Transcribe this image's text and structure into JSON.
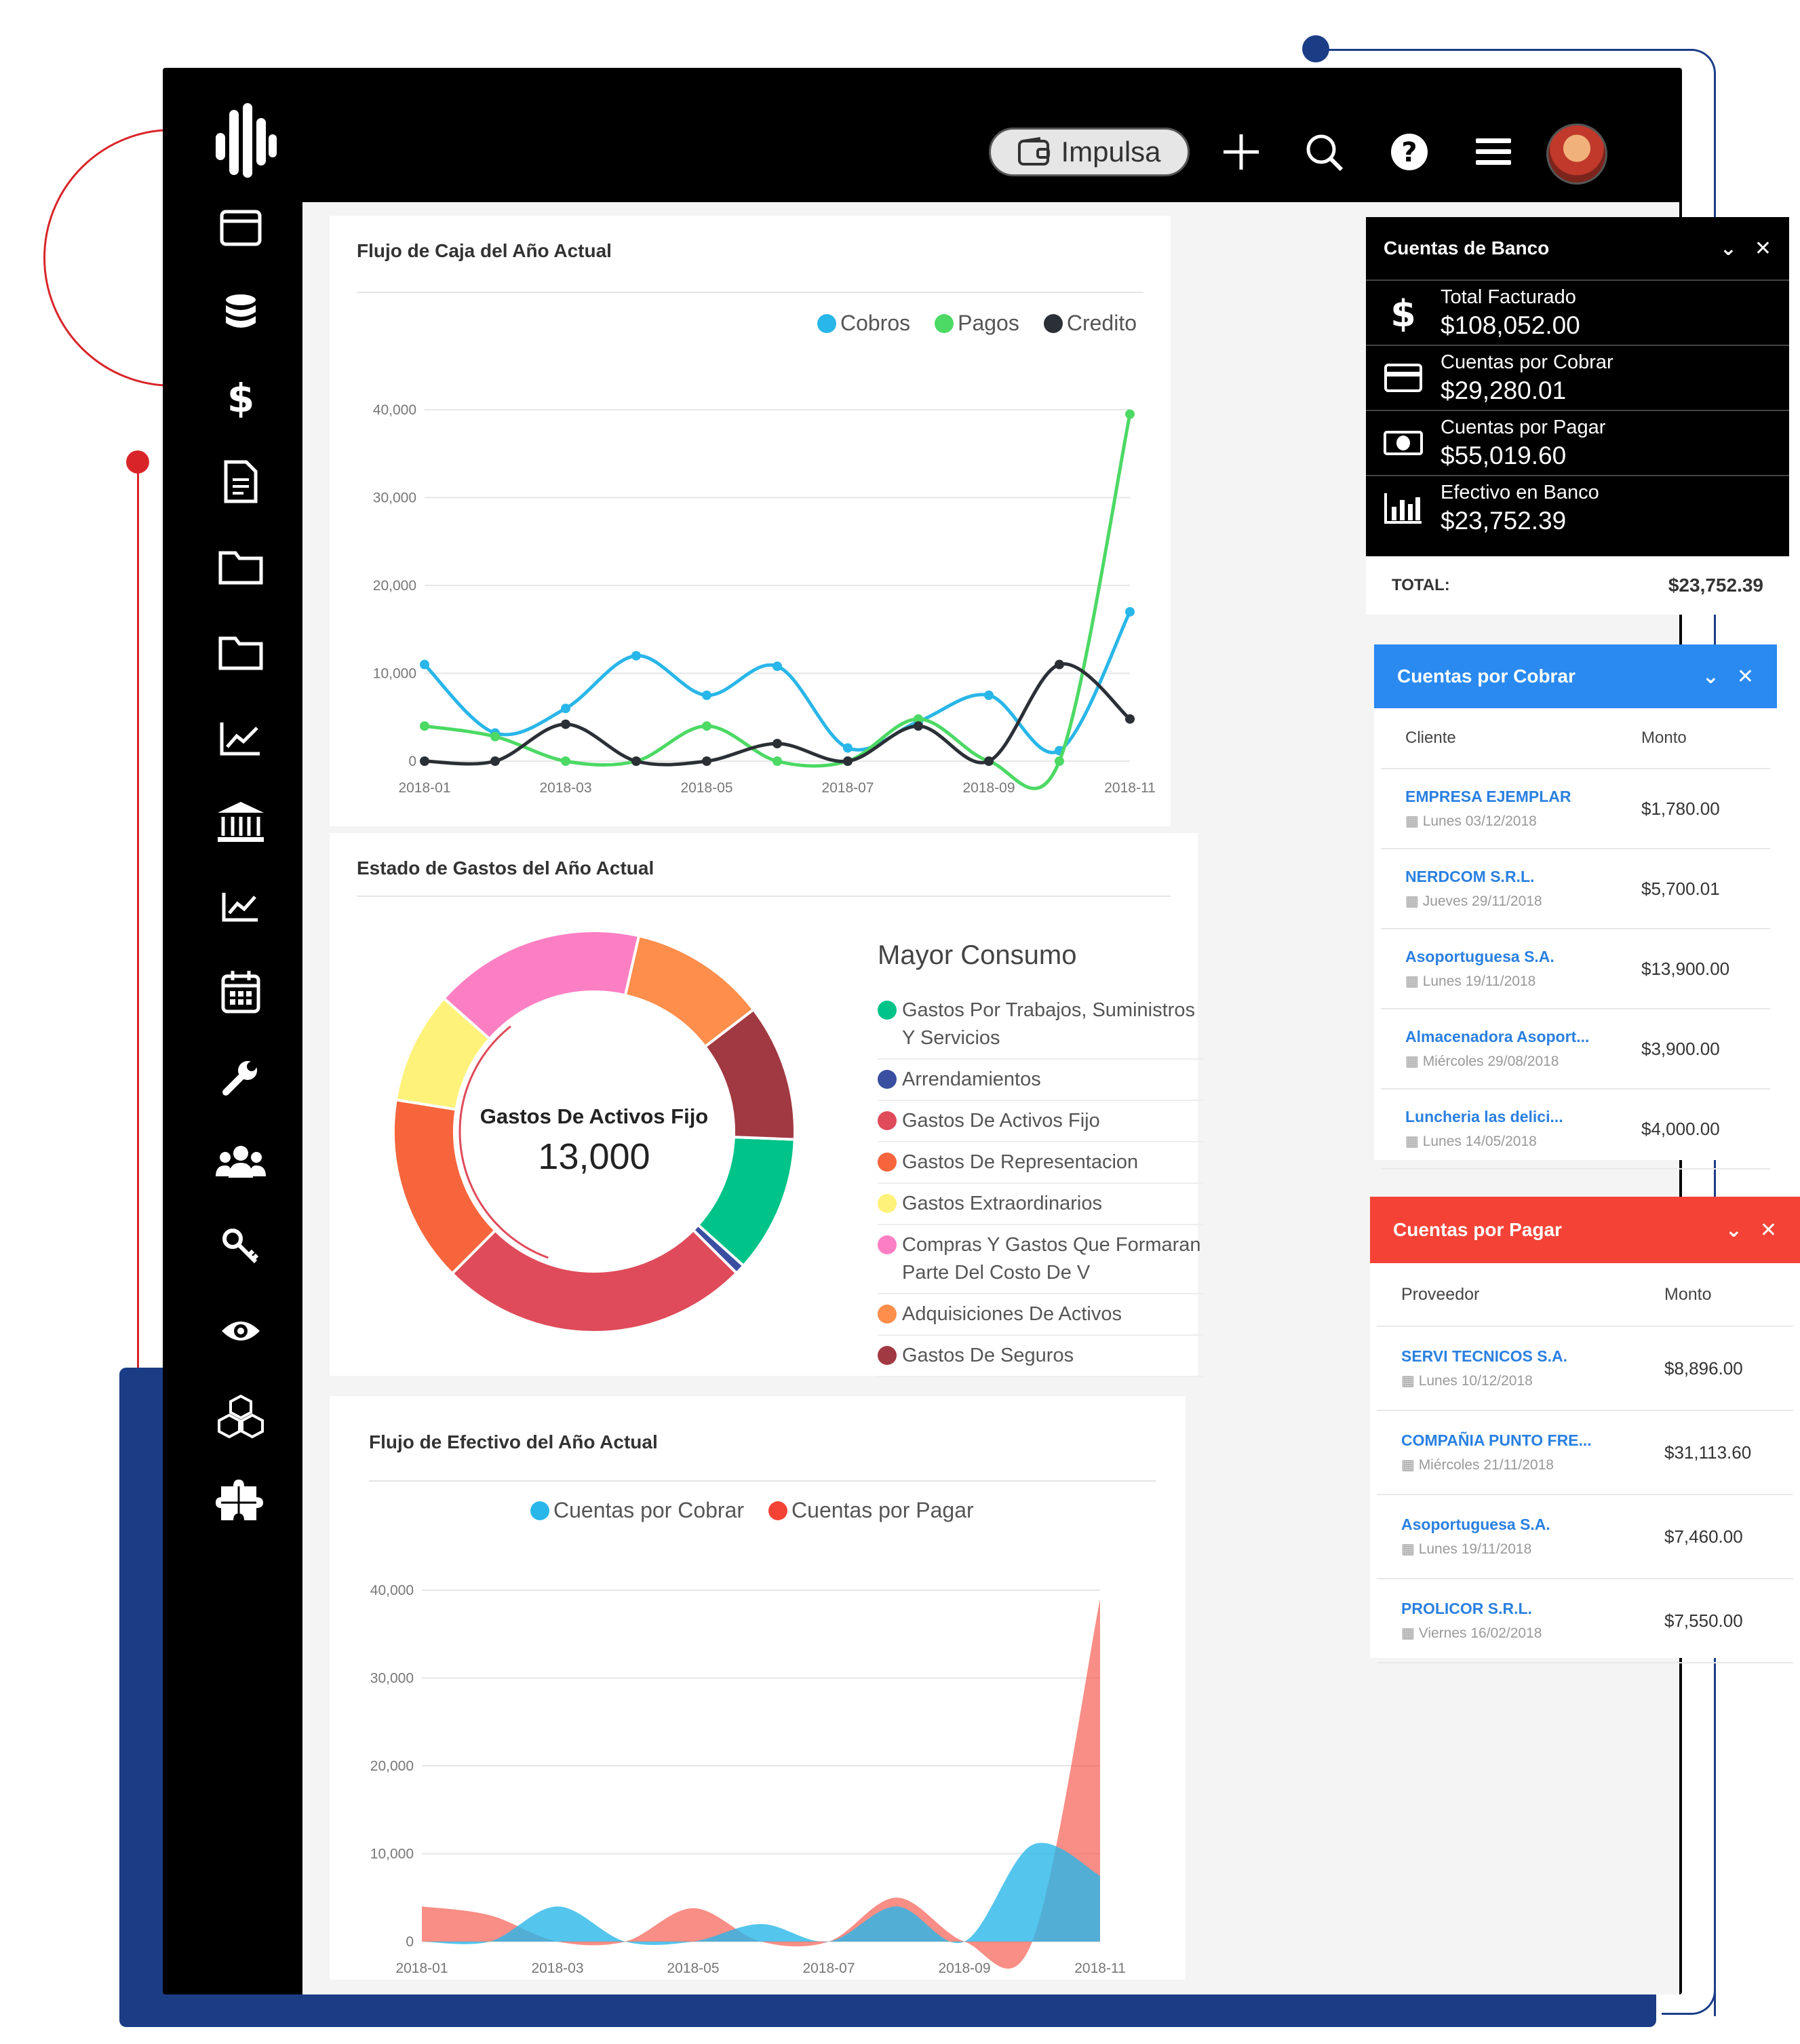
{
  "topbar": {
    "impulsa_label": "Impulsa",
    "icons": [
      "plus-icon",
      "search-icon",
      "help-icon",
      "menu-icon"
    ]
  },
  "sidebar": {
    "icons": [
      "window-icon",
      "database-icon",
      "dollar-icon",
      "document-icon",
      "folder-icon",
      "folder-icon",
      "line-chart-icon",
      "bank-icon",
      "trend-icon",
      "calendar-icon",
      "wrench-icon",
      "users-icon",
      "key-icon",
      "eye-icon",
      "boxes-icon",
      "puzzle-icon"
    ]
  },
  "cashflow": {
    "title": "Flujo de Caja del Año Actual",
    "chart_data": {
      "type": "line",
      "x": [
        "2018-01",
        "2018-02",
        "2018-03",
        "2018-04",
        "2018-05",
        "2018-06",
        "2018-07",
        "2018-08",
        "2018-09",
        "2018-10",
        "2018-11"
      ],
      "xticks": [
        "2018-01",
        "2018-03",
        "2018-05",
        "2018-07",
        "2018-09",
        "2018-11"
      ],
      "yticks": [
        "40,000",
        "30,000",
        "20,000",
        "10,000",
        "0"
      ],
      "ylim": [
        0,
        40000
      ],
      "series": [
        {
          "name": "Cobros",
          "color": "#29b6e8",
          "values": [
            11000,
            3200,
            6000,
            12000,
            7500,
            10800,
            1500,
            4500,
            7500,
            1200,
            17000
          ]
        },
        {
          "name": "Pagos",
          "color": "#4cd964",
          "values": [
            4000,
            2800,
            0,
            0,
            4000,
            0,
            0,
            4800,
            0,
            0,
            39500
          ]
        },
        {
          "name": "Credito",
          "color": "#2b2f36",
          "values": [
            0,
            0,
            4200,
            0,
            0,
            2000,
            0,
            4000,
            0,
            11000,
            4800
          ]
        }
      ]
    }
  },
  "expenses": {
    "title": "Estado de Gastos del Año Actual",
    "center_label": "Gastos De Activos Fijo",
    "center_value": "13,000",
    "legend_title": "Mayor Consumo",
    "chart_data": {
      "type": "pie",
      "slices": [
        {
          "name": "Gastos Por Trabajos, Suministros Y Servicios",
          "color": "#00c389",
          "value": 11
        },
        {
          "name": "Arrendamientos",
          "color": "#3a4fa0",
          "value": 0.8
        },
        {
          "name": "Gastos De Activos Fijo",
          "color": "#df4b5a",
          "value": 25
        },
        {
          "name": "Gastos De Representacion",
          "color": "#f7653c",
          "value": 15
        },
        {
          "name": "Gastos Extraordinarios",
          "color": "#fff27a",
          "value": 9
        },
        {
          "name": "Compras Y Gastos Que Formaran Parte Del Costo De V",
          "color": "#fd7fc3",
          "value": 17
        },
        {
          "name": "Adquisiciones De Activos",
          "color": "#fd8e4b",
          "value": 11
        },
        {
          "name": "Gastos De Seguros",
          "color": "#a13942",
          "value": 11
        }
      ]
    }
  },
  "effective": {
    "title": "Flujo de Efectivo del Año Actual",
    "chart_data": {
      "type": "area",
      "x": [
        "2018-01",
        "2018-02",
        "2018-03",
        "2018-04",
        "2018-05",
        "2018-06",
        "2018-07",
        "2018-08",
        "2018-09",
        "2018-10",
        "2018-11"
      ],
      "xticks": [
        "2018-01",
        "2018-03",
        "2018-05",
        "2018-07",
        "2018-09",
        "2018-11"
      ],
      "yticks": [
        "40,000",
        "30,000",
        "20,000",
        "10,000",
        "0"
      ],
      "ylim": [
        0,
        40000
      ],
      "series": [
        {
          "name": "Cuentas por Cobrar",
          "color": "#29b6e8",
          "values": [
            0,
            0,
            4000,
            0,
            0,
            2000,
            0,
            4000,
            0,
            11000,
            7500
          ]
        },
        {
          "name": "Cuentas por Pagar",
          "color": "#f44336",
          "values": [
            4000,
            3000,
            0,
            0,
            3800,
            0,
            0,
            5000,
            0,
            0,
            39000
          ]
        }
      ]
    }
  },
  "bank": {
    "title": "Cuentas de Banco",
    "rows": [
      {
        "label": "Total Facturado",
        "value": "$108,052.00",
        "icon": "dollar-icon"
      },
      {
        "label": "Cuentas por Cobrar",
        "value": "$29,280.01",
        "icon": "credit-card-icon"
      },
      {
        "label": "Cuentas por Pagar",
        "value": "$55,019.60",
        "icon": "cash-icon"
      },
      {
        "label": "Efectivo en Banco",
        "value": "$23,752.39",
        "icon": "bar-chart-icon"
      }
    ],
    "total_label": "TOTAL:",
    "total_value": "$23,752.39"
  },
  "receivable": {
    "title": "Cuentas por Cobrar",
    "col_client": "Cliente",
    "col_amount": "Monto",
    "color": "#2a8af0",
    "rows": [
      {
        "name": "EMPRESA EJEMPLAR",
        "date": "Lunes 03/12/2018",
        "amount": "$1,780.00"
      },
      {
        "name": "NERDCOM S.R.L.",
        "date": "Jueves 29/11/2018",
        "amount": "$5,700.01"
      },
      {
        "name": "Asoportuguesa S.A.",
        "date": "Lunes 19/11/2018",
        "amount": "$13,900.00"
      },
      {
        "name": "Almacenadora Asoport...",
        "date": "Miércoles 29/08/2018",
        "amount": "$3,900.00"
      },
      {
        "name": "Luncheria las delici...",
        "date": "Lunes 14/05/2018",
        "amount": "$4,000.00"
      }
    ]
  },
  "payable": {
    "title": "Cuentas por Pagar",
    "col_provider": "Proveedor",
    "col_amount": "Monto",
    "color": "#f44336",
    "rows": [
      {
        "name": "SERVI TECNICOS S.A.",
        "date": "Lunes 10/12/2018",
        "amount": "$8,896.00"
      },
      {
        "name": "COMPAÑIA PUNTO FRE...",
        "date": "Miércoles 21/11/2018",
        "amount": "$31,113.60"
      },
      {
        "name": "Asoportuguesa S.A.",
        "date": "Lunes 19/11/2018",
        "amount": "$7,460.00"
      },
      {
        "name": "PROLICOR S.R.L.",
        "date": "Viernes 16/02/2018",
        "amount": "$7,550.00"
      }
    ]
  }
}
